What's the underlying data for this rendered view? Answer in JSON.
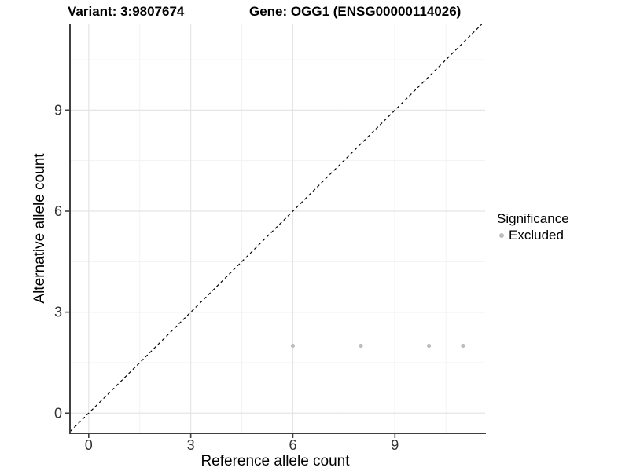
{
  "figure": {
    "title_variant": "Variant: 3:9807674",
    "title_gene": "Gene: OGG1 (ENSG00000114026)"
  },
  "axes": {
    "x_label": "Reference allele count",
    "y_label": "Alternative allele count"
  },
  "legend": {
    "title": "Significance",
    "items": [
      {
        "label": "Excluded",
        "color": "#bdbdbd",
        "marker": "dot-icon"
      }
    ]
  },
  "chart_data": {
    "type": "scatter",
    "title": "Variant: 3:9807674  /  Gene: OGG1 (ENSG00000114026)",
    "xlabel": "Reference allele count",
    "ylabel": "Alternative allele count",
    "xlim": [
      -0.55,
      11.65
    ],
    "ylim": [
      -0.6,
      11.55
    ],
    "x_ticks": [
      0,
      3,
      6,
      9
    ],
    "y_ticks": [
      0,
      3,
      6,
      9
    ],
    "x_minor_ticks": [
      1.5,
      4.5,
      7.5,
      10.5
    ],
    "y_minor_ticks": [
      1.5,
      4.5,
      7.5,
      10.5
    ],
    "grid": "on",
    "legend_position": "right",
    "series": [
      {
        "name": "Excluded",
        "color": "#bdbdbd",
        "marker": "circle",
        "points": [
          {
            "x": 6,
            "y": 2
          },
          {
            "x": 8,
            "y": 2
          },
          {
            "x": 10,
            "y": 2
          },
          {
            "x": 11,
            "y": 2
          }
        ]
      }
    ],
    "reference_line": {
      "type": "identity",
      "style": "dashed",
      "color": "#000000"
    }
  },
  "colors": {
    "background": "#ffffff",
    "axis_line": "#404040",
    "tick_text": "#333333",
    "grid_major": "#e5e5e5",
    "grid_minor": "#f1f1f1",
    "point": "#bdbdbd"
  }
}
